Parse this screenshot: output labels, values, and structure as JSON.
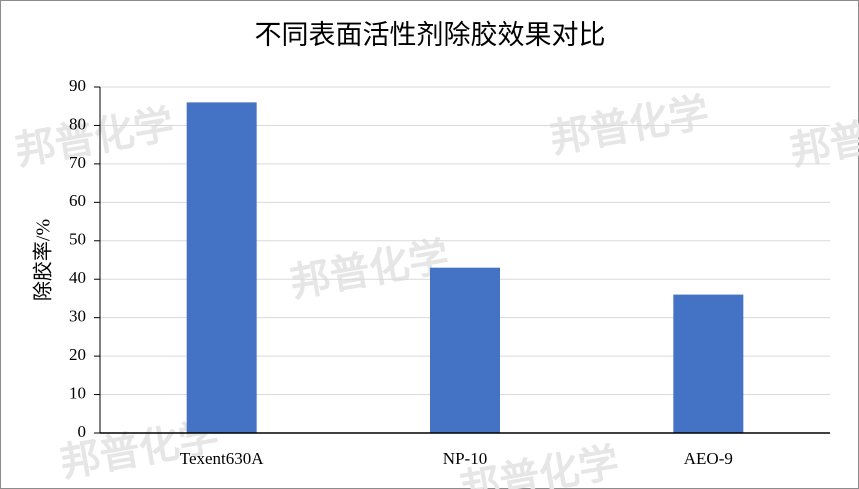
{
  "chart_data": {
    "type": "bar",
    "title": "不同表面活性剂除胶效果对比",
    "y_label": "除胶率/%",
    "watermark": "邦普化学",
    "categories": [
      "Texent630A",
      "NP-10",
      "AEO-9"
    ],
    "values": [
      86,
      43,
      36
    ],
    "color": "#4472c4",
    "ylim": [
      0,
      90
    ],
    "yticks": [
      0,
      10,
      20,
      30,
      40,
      50,
      60,
      70,
      80,
      90
    ],
    "grid": true
  }
}
